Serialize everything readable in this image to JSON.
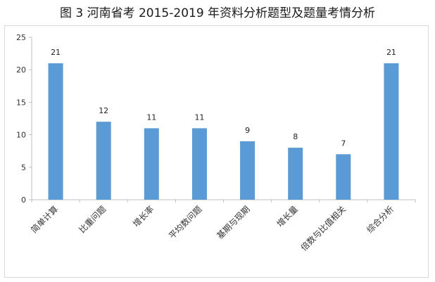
{
  "title": "图 3 河南省考 2015-2019 年资料分析题型及题量考情分析",
  "chart_data": {
    "type": "bar",
    "title": "图 3 河南省考 2015-2019 年资料分析题型及题量考情分析",
    "xlabel": "",
    "ylabel": "",
    "categories": [
      "简单计算",
      "比重问题",
      "增长率",
      "平均数问题",
      "基期与现期",
      "增长量",
      "倍数与比值相关",
      "综合分析"
    ],
    "values": [
      21,
      12,
      11,
      11,
      9,
      8,
      7,
      21
    ],
    "ylim": [
      0,
      25
    ],
    "yticks": [
      0,
      5,
      10,
      15,
      20,
      25
    ],
    "bar_color": "#5b9bd5",
    "grid": false,
    "legend": "none",
    "data_labels": true
  }
}
